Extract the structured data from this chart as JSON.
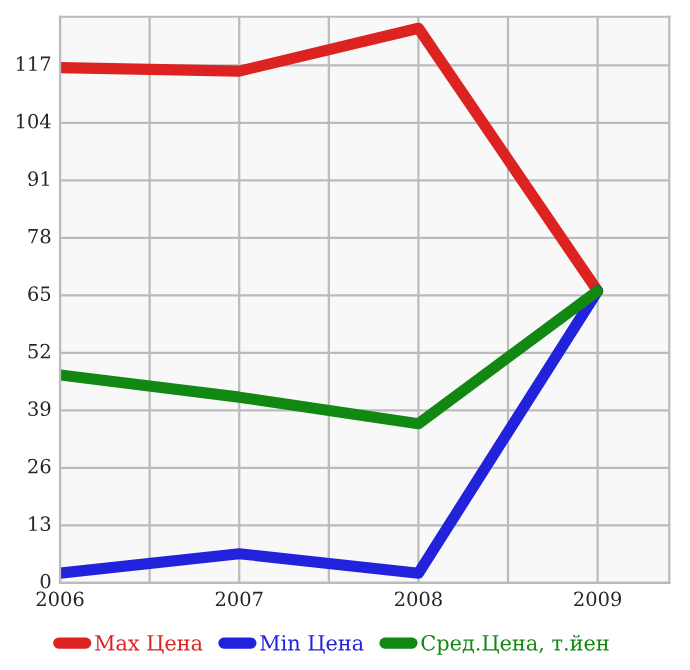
{
  "chart_data": {
    "type": "line",
    "x": [
      2006,
      2007,
      2008,
      2009
    ],
    "series": [
      {
        "name": "Max Цена",
        "color": "#dd2222",
        "values": [
          116.5,
          115.7,
          125.4,
          66
        ]
      },
      {
        "name": "Min Цена",
        "color": "#2222dd",
        "values": [
          2.2,
          6.6,
          2.2,
          66
        ]
      },
      {
        "name": "Сред.Цена, т.йен",
        "color": "#118811",
        "values": [
          47,
          42,
          36,
          66
        ]
      }
    ],
    "xlim": [
      2006,
      2009.4
    ],
    "xticks": [
      2006,
      {
        "value": 2006.5,
        "label": null
      },
      2007,
      {
        "value": 2007.5,
        "label": null
      },
      2008,
      {
        "value": 2008.5,
        "label": null
      },
      2009
    ],
    "ylim": [
      0,
      128
    ],
    "yticks": [
      0,
      13,
      26,
      39,
      52,
      65,
      78,
      91,
      104,
      117
    ],
    "grid": true,
    "legend": "bottom",
    "marker": "none",
    "line_style": "solid"
  }
}
